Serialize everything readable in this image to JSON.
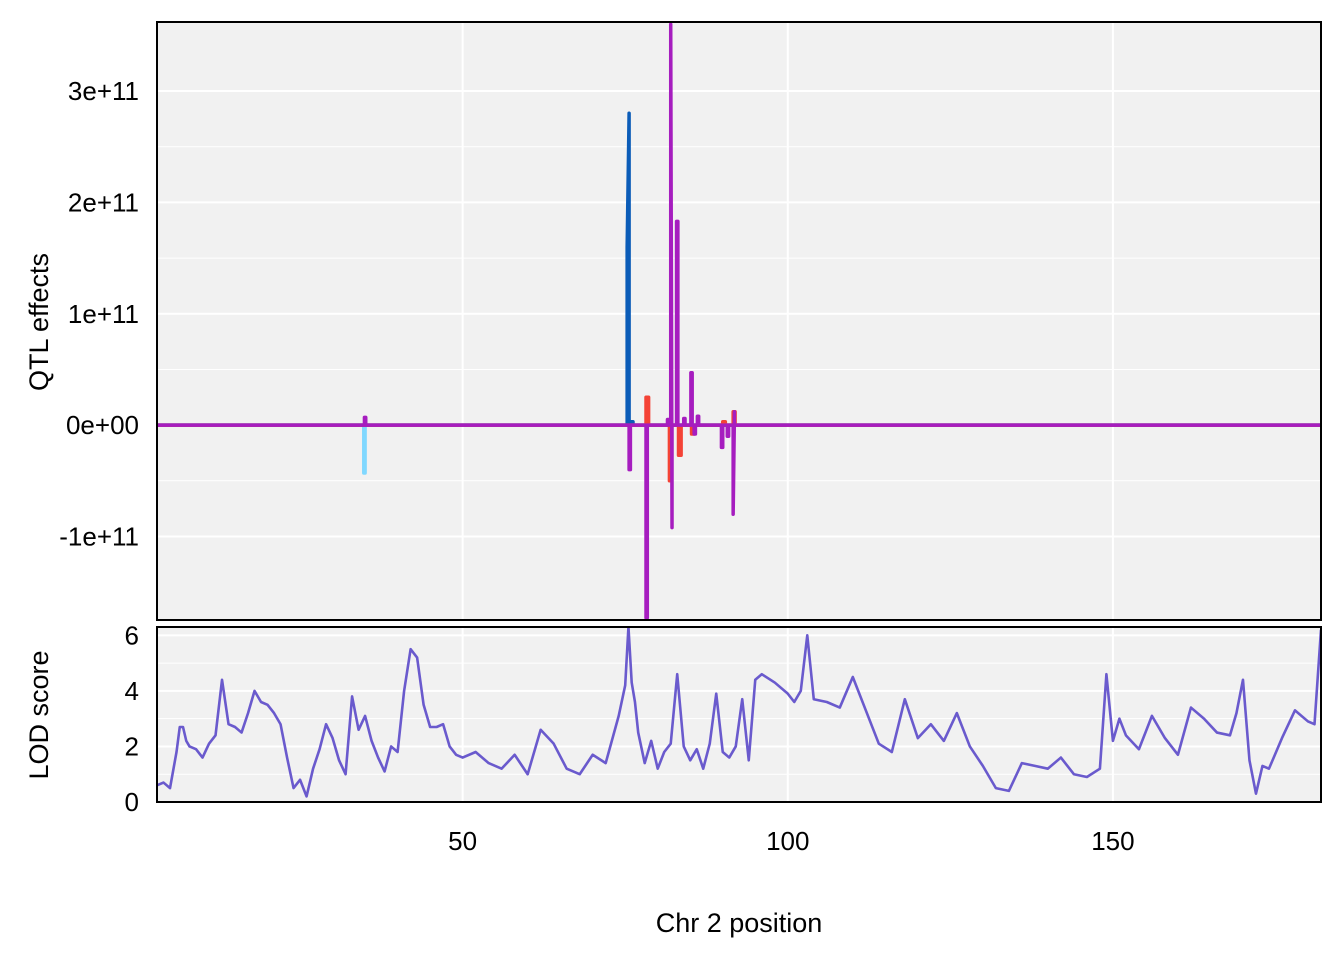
{
  "chart_data": [
    {
      "type": "line",
      "panel": "QTL effects",
      "ylabel": "QTL effects",
      "ylim": [
        -175000000000.0,
        362000000000.0
      ],
      "xlim": [
        3,
        182
      ],
      "y_ticks": [
        -100000000000.0,
        0,
        100000000000.0,
        200000000000.0,
        300000000000.0
      ],
      "y_tick_labels": [
        "-1e+11",
        "0e+00",
        "1e+11",
        "2e+11",
        "3e+11"
      ],
      "grid": true,
      "series": [
        {
          "color": "#80D8FF",
          "x": [
            3,
            34.8,
            34.8,
            35.0,
            35.0,
            182
          ],
          "y": [
            0,
            0,
            -43000000000.0,
            -43000000000.0,
            0,
            0
          ]
        },
        {
          "color": "#0B5CB8",
          "x": [
            3,
            75.3,
            75.3,
            75.6,
            75.6,
            75.9,
            75.9,
            76.2,
            76.2,
            182
          ],
          "y": [
            0,
            0,
            160000000000.0,
            280000000000.0,
            0,
            0,
            3000000000.0,
            3000000000.0,
            0,
            0
          ]
        },
        {
          "color": "#F44336",
          "x": [
            3,
            78.2,
            78.2,
            78.6,
            78.6,
            81.8,
            81.8,
            82.1,
            82.1,
            83.2,
            83.2,
            83.6,
            83.6,
            85.2,
            85.2,
            85.6,
            85.6,
            90.0,
            90.0,
            90.4,
            90.4,
            91.6,
            91.6,
            91.9,
            91.9,
            182
          ],
          "y": [
            0,
            0,
            25000000000.0,
            25000000000.0,
            0,
            0,
            -50000000000.0,
            -50000000000.0,
            0,
            0,
            -27000000000.0,
            -27000000000.0,
            0,
            0,
            -8000000000.0,
            -8000000000.0,
            0,
            0,
            3000000000.0,
            3000000000.0,
            0,
            0,
            12000000000.0,
            12000000000.0,
            0,
            0
          ]
        },
        {
          "color": "#A61DBF",
          "x": [
            3,
            34.9,
            34.9,
            35.1,
            35.1,
            75.6,
            75.6,
            75.8,
            75.8,
            78.2,
            78.2,
            78.4,
            78.4,
            81.5,
            81.5,
            81.7,
            81.7,
            82.0,
            82.0,
            82.2,
            82.2,
            82.9,
            82.9,
            83.1,
            83.1,
            84.0,
            84.0,
            84.2,
            84.2,
            85.1,
            85.1,
            85.3,
            85.3,
            85.6,
            85.6,
            85.8,
            85.8,
            86.1,
            86.1,
            86.3,
            86.3,
            89.8,
            89.8,
            90.0,
            90.0,
            90.7,
            90.7,
            90.9,
            90.9,
            91.6,
            91.6,
            91.8,
            91.8,
            182
          ],
          "y": [
            0,
            0,
            7000000000.0,
            7000000000.0,
            0,
            0,
            -40000000000.0,
            -40000000000.0,
            0,
            0,
            -173000000000.0,
            -173000000000.0,
            0,
            0,
            5000000000.0,
            5000000000.0,
            0,
            0,
            360000000000.0,
            -92000000000.0,
            0,
            0,
            183000000000.0,
            183000000000.0,
            0,
            0,
            6000000000.0,
            6000000000.0,
            0,
            0,
            47000000000.0,
            47000000000.0,
            0,
            0,
            -8000000000.0,
            -8000000000.0,
            0,
            0,
            8000000000.0,
            8000000000.0,
            0,
            0,
            -20000000000.0,
            -20000000000.0,
            0,
            0,
            -10000000000.0,
            -10000000000.0,
            0,
            0,
            -80000000000.0,
            12000000000.0,
            0,
            0
          ]
        }
      ]
    },
    {
      "type": "line",
      "panel": "LOD score",
      "ylabel": "LOD score",
      "xlabel": "Chr 2 position",
      "ylim": [
        0,
        6.3
      ],
      "xlim": [
        3,
        182
      ],
      "y_ticks": [
        0,
        2,
        4,
        6
      ],
      "y_tick_labels": [
        "0",
        "2",
        "4",
        "6"
      ],
      "x_ticks": [
        50,
        100,
        150
      ],
      "x_tick_labels": [
        "50",
        "100",
        "150"
      ],
      "grid": true,
      "series": [
        {
          "color": "#6A5ACD",
          "x": [
            3,
            4,
            5,
            6,
            6.5,
            7,
            7.5,
            8,
            9,
            10,
            11,
            12,
            13,
            14,
            15,
            16,
            17,
            18,
            19,
            20,
            21,
            22,
            23,
            24,
            25,
            26,
            27,
            28,
            29,
            30,
            31,
            32,
            33,
            34,
            35,
            36,
            37,
            38,
            39,
            40,
            41,
            42,
            43,
            44,
            45,
            46,
            47,
            48,
            49,
            50,
            52,
            54,
            56,
            58,
            60,
            62,
            64,
            66,
            68,
            70,
            72,
            74,
            75,
            75.5,
            76,
            76.5,
            77,
            78,
            79,
            80,
            81,
            82,
            83,
            84,
            85,
            86,
            87,
            88,
            89,
            90,
            91,
            92,
            93,
            94,
            95,
            96,
            98,
            100,
            101,
            102,
            103,
            104,
            106,
            108,
            110,
            112,
            114,
            116,
            118,
            120,
            122,
            124,
            126,
            128,
            130,
            132,
            134,
            136,
            138,
            140,
            142,
            144,
            146,
            148,
            149,
            150,
            151,
            152,
            154,
            156,
            158,
            160,
            162,
            164,
            166,
            168,
            169,
            170,
            171,
            172,
            173,
            174,
            176,
            178,
            180,
            181,
            182
          ],
          "y": [
            0.6,
            0.7,
            0.5,
            1.8,
            2.7,
            2.7,
            2.2,
            2.0,
            1.9,
            1.6,
            2.1,
            2.4,
            4.4,
            2.8,
            2.7,
            2.5,
            3.2,
            4.0,
            3.6,
            3.5,
            3.2,
            2.8,
            1.6,
            0.5,
            0.8,
            0.2,
            1.2,
            1.9,
            2.8,
            2.3,
            1.5,
            1.0,
            3.8,
            2.6,
            3.1,
            2.2,
            1.6,
            1.1,
            2.0,
            1.8,
            4.0,
            5.5,
            5.2,
            3.5,
            2.7,
            2.7,
            2.8,
            2.0,
            1.7,
            1.6,
            1.8,
            1.4,
            1.2,
            1.7,
            1.0,
            2.6,
            2.1,
            1.2,
            1.0,
            1.7,
            1.4,
            3.1,
            4.2,
            6.3,
            4.3,
            3.6,
            2.5,
            1.4,
            2.2,
            1.2,
            1.8,
            2.1,
            4.6,
            2.0,
            1.5,
            1.9,
            1.2,
            2.1,
            3.9,
            1.8,
            1.6,
            2.0,
            3.7,
            1.5,
            4.4,
            4.6,
            4.3,
            3.9,
            3.6,
            4.0,
            6.0,
            3.7,
            3.6,
            3.4,
            4.5,
            3.3,
            2.1,
            1.8,
            3.7,
            2.3,
            2.8,
            2.2,
            3.2,
            2.0,
            1.3,
            0.5,
            0.4,
            1.4,
            1.3,
            1.2,
            1.6,
            1.0,
            0.9,
            1.2,
            4.6,
            2.2,
            3.0,
            2.4,
            1.9,
            3.1,
            2.3,
            1.7,
            3.4,
            3.0,
            2.5,
            2.4,
            3.2,
            4.4,
            1.5,
            0.3,
            1.3,
            1.2,
            2.3,
            3.3,
            2.9,
            2.8,
            6.2
          ]
        }
      ]
    }
  ]
}
